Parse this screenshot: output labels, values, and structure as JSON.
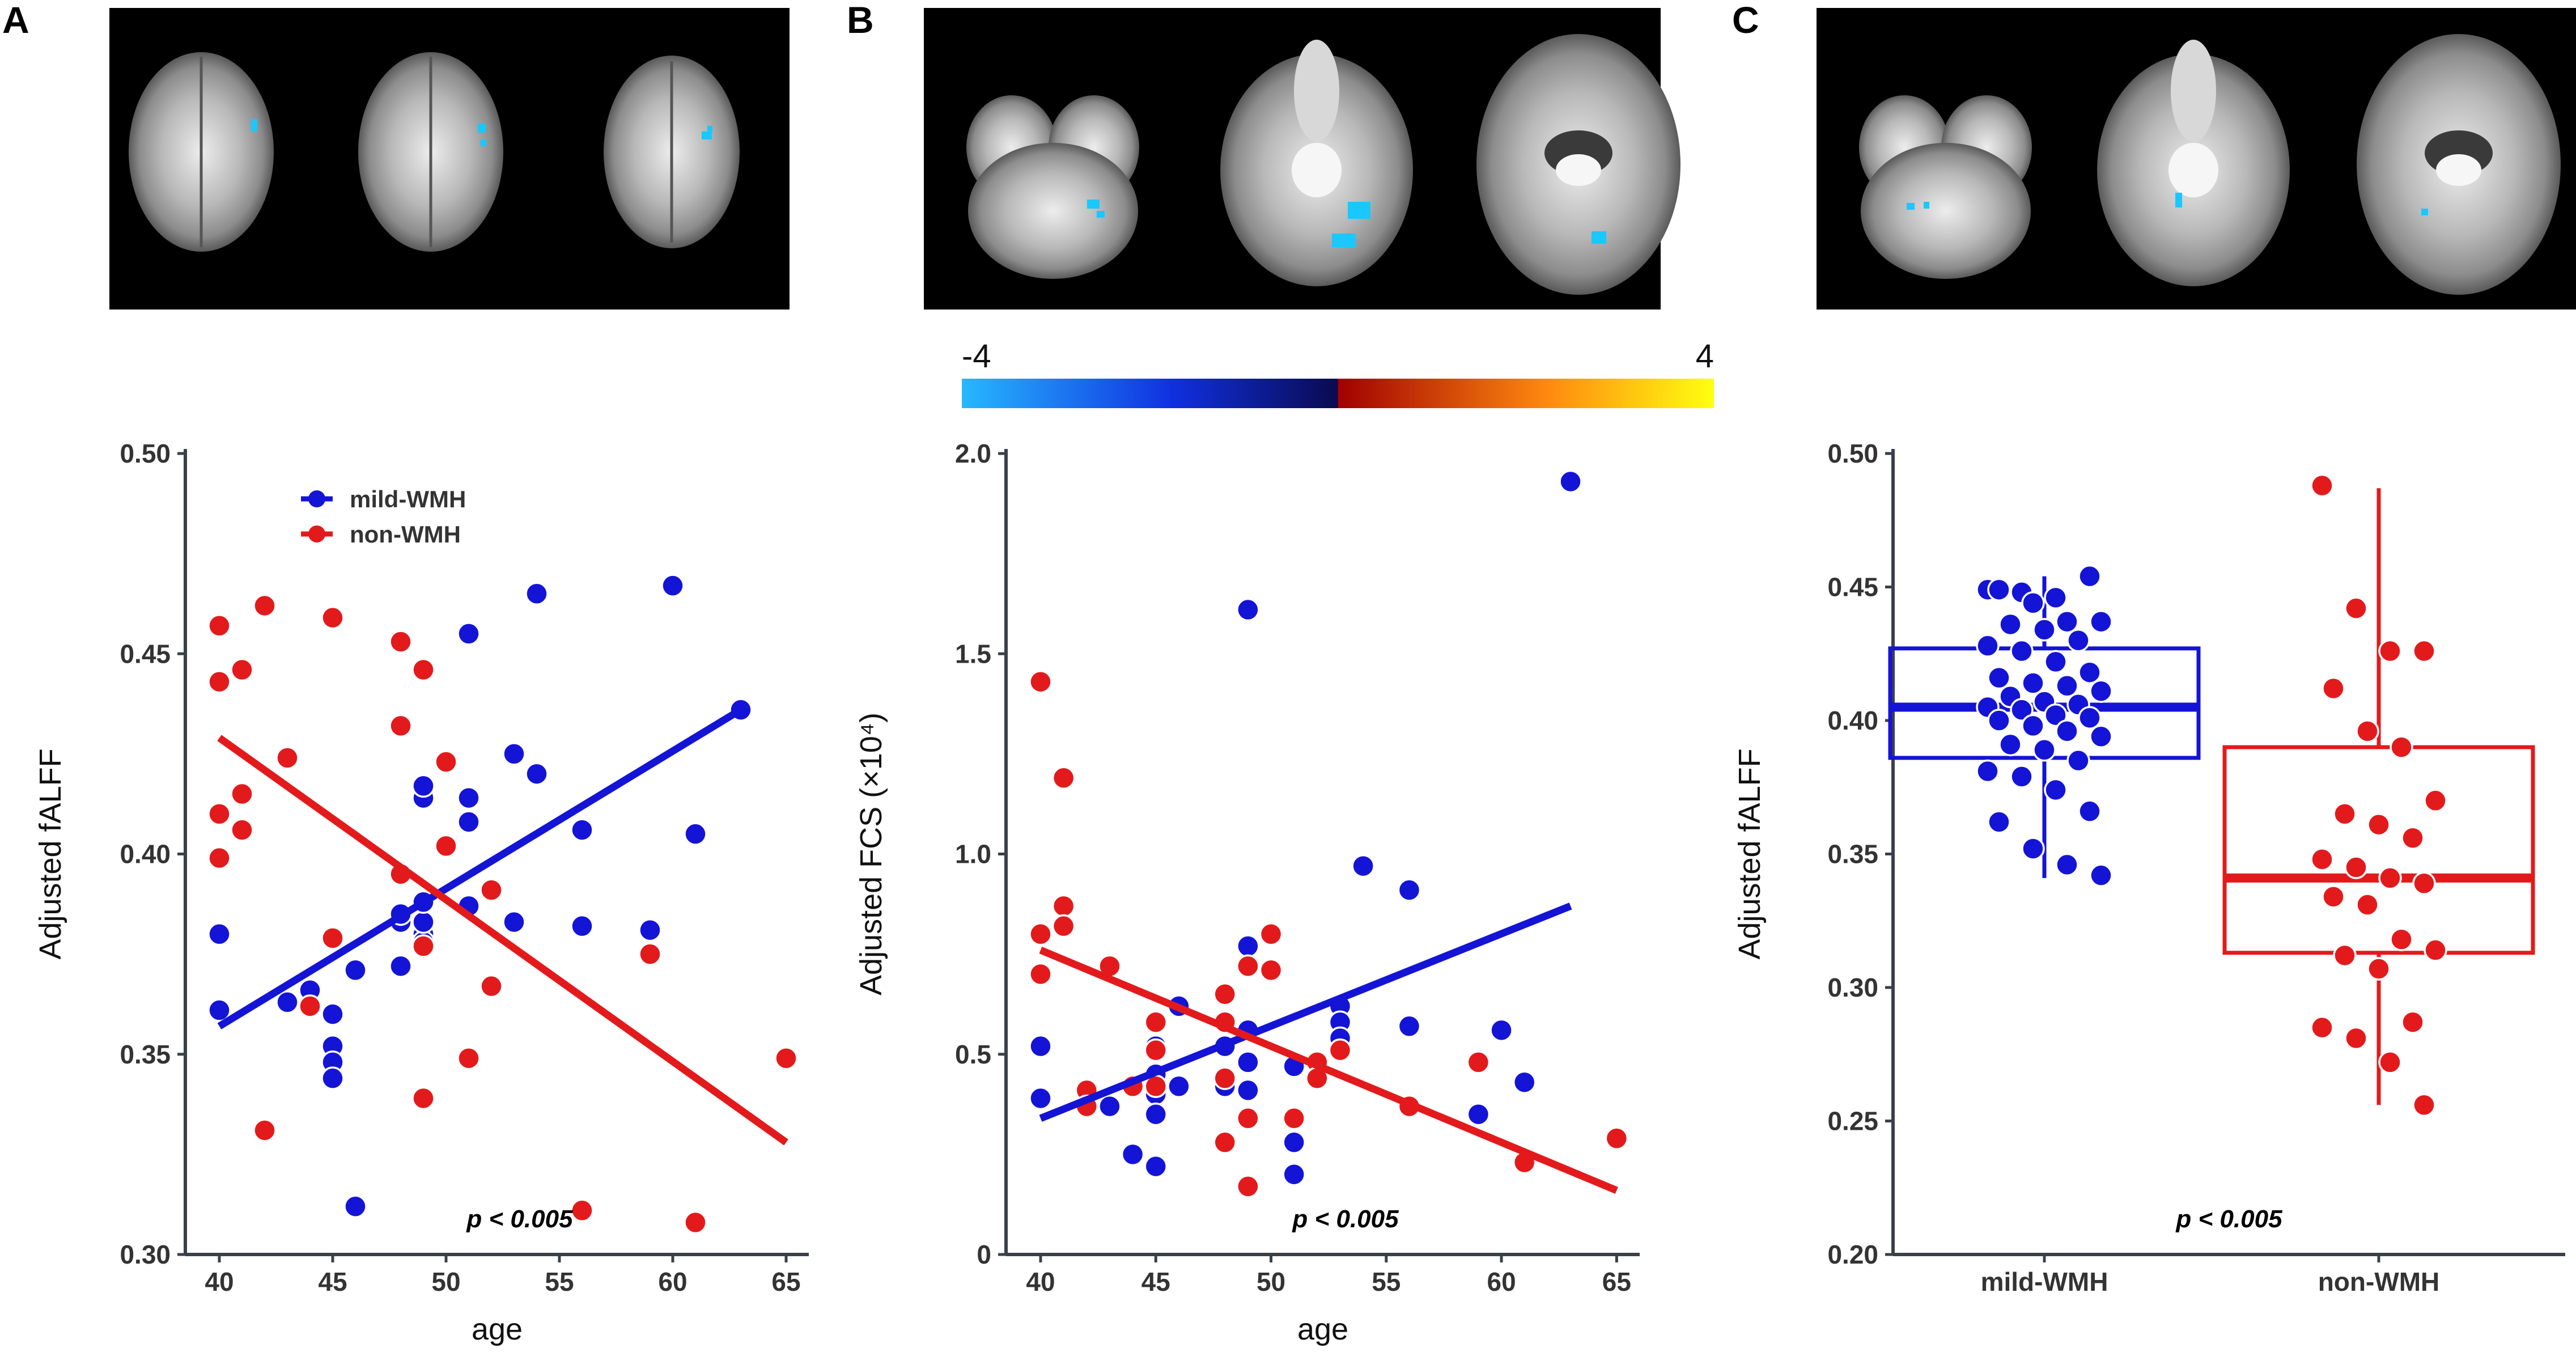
{
  "panels": {
    "a": "A",
    "b": "B",
    "c": "C"
  },
  "colors": {
    "mild": "#1414d6",
    "non": "#e31a1c",
    "highlight": "#18c8ff",
    "axis": "#3a4049"
  },
  "colorbar": {
    "min_label": "-4",
    "max_label": "4"
  },
  "chart_data": [
    {
      "type": "scatter",
      "panel": "A",
      "xlabel": "age",
      "ylabel": "Adjusted fALFF",
      "xlim": [
        38.5,
        66
      ],
      "ylim": [
        0.3,
        0.5
      ],
      "xticks": [
        40,
        45,
        50,
        55,
        60,
        65
      ],
      "yticks": [
        0.3,
        0.35,
        0.4,
        0.45,
        0.5
      ],
      "ytick_labels": [
        "0.30",
        "0.35",
        "0.40",
        "0.45",
        "0.50"
      ],
      "annotation": "p < 0.005",
      "legend": {
        "position": "top-left",
        "entries": [
          "mild-WMH",
          "non-WMH"
        ]
      },
      "series": [
        {
          "name": "mild-WMH",
          "fit": [
            [
              40,
              0.357
            ],
            [
              63,
              0.436
            ]
          ],
          "points": [
            [
              40,
              0.399
            ],
            [
              40,
              0.38
            ],
            [
              40,
              0.361
            ],
            [
              43,
              0.363
            ],
            [
              44,
              0.366
            ],
            [
              45,
              0.36
            ],
            [
              45,
              0.352
            ],
            [
              45,
              0.348
            ],
            [
              45,
              0.344
            ],
            [
              46,
              0.371
            ],
            [
              46,
              0.312
            ],
            [
              48,
              0.372
            ],
            [
              48,
              0.383
            ],
            [
              48,
              0.385
            ],
            [
              49,
              0.38
            ],
            [
              49,
              0.378
            ],
            [
              49,
              0.383
            ],
            [
              49,
              0.388
            ],
            [
              49,
              0.414
            ],
            [
              49,
              0.417
            ],
            [
              51,
              0.387
            ],
            [
              51,
              0.408
            ],
            [
              51,
              0.414
            ],
            [
              51,
              0.455
            ],
            [
              53,
              0.425
            ],
            [
              53,
              0.383
            ],
            [
              54,
              0.42
            ],
            [
              54,
              0.465
            ],
            [
              56,
              0.382
            ],
            [
              56,
              0.406
            ],
            [
              59,
              0.381
            ],
            [
              60,
              0.467
            ],
            [
              61,
              0.405
            ],
            [
              63,
              0.436
            ]
          ]
        },
        {
          "name": "non-WMH",
          "fit": [
            [
              40,
              0.429
            ],
            [
              65,
              0.328
            ]
          ],
          "points": [
            [
              40,
              0.457
            ],
            [
              40,
              0.443
            ],
            [
              40,
              0.41
            ],
            [
              40,
              0.399
            ],
            [
              41,
              0.446
            ],
            [
              41,
              0.415
            ],
            [
              41,
              0.406
            ],
            [
              42,
              0.462
            ],
            [
              42,
              0.331
            ],
            [
              43,
              0.424
            ],
            [
              44,
              0.362
            ],
            [
              45,
              0.459
            ],
            [
              45,
              0.379
            ],
            [
              48,
              0.453
            ],
            [
              48,
              0.432
            ],
            [
              48,
              0.395
            ],
            [
              49,
              0.446
            ],
            [
              49,
              0.377
            ],
            [
              49,
              0.339
            ],
            [
              50,
              0.423
            ],
            [
              50,
              0.402
            ],
            [
              51,
              0.349
            ],
            [
              52,
              0.391
            ],
            [
              52,
              0.367
            ],
            [
              56,
              0.311
            ],
            [
              59,
              0.375
            ],
            [
              61,
              0.308
            ],
            [
              65,
              0.349
            ]
          ]
        }
      ]
    },
    {
      "type": "scatter",
      "panel": "B",
      "xlabel": "age",
      "ylabel": "Adjusted FCS (×10⁴)",
      "xlim": [
        38.5,
        66
      ],
      "ylim": [
        0,
        2.0
      ],
      "xticks": [
        40,
        45,
        50,
        55,
        60,
        65
      ],
      "yticks": [
        0,
        0.5,
        1.0,
        1.5,
        2.0
      ],
      "ytick_labels": [
        "0",
        "0.5",
        "1.0",
        "1.5",
        "2.0"
      ],
      "annotation": "p < 0.005",
      "series": [
        {
          "name": "mild-WMH",
          "fit": [
            [
              40,
              0.34
            ],
            [
              63,
              0.87
            ]
          ],
          "points": [
            [
              40,
              0.52
            ],
            [
              40,
              0.39
            ],
            [
              45,
              0.58
            ],
            [
              45,
              0.52
            ],
            [
              45,
              0.45
            ],
            [
              45,
              0.4
            ],
            [
              45,
              0.35
            ],
            [
              45,
              0.22
            ],
            [
              46,
              0.62
            ],
            [
              46,
              0.42
            ],
            [
              48,
              0.52
            ],
            [
              48,
              0.42
            ],
            [
              49,
              1.61
            ],
            [
              49,
              0.77
            ],
            [
              49,
              0.56
            ],
            [
              49,
              0.48
            ],
            [
              49,
              0.41
            ],
            [
              51,
              0.47
            ],
            [
              51,
              0.28
            ],
            [
              51,
              0.2
            ],
            [
              53,
              0.62
            ],
            [
              53,
              0.58
            ],
            [
              53,
              0.54
            ],
            [
              54,
              0.97
            ],
            [
              56,
              0.91
            ],
            [
              56,
              0.57
            ],
            [
              59,
              0.35
            ],
            [
              60,
              0.56
            ],
            [
              61,
              0.43
            ],
            [
              63,
              1.93
            ],
            [
              44,
              0.25
            ],
            [
              43,
              0.37
            ]
          ]
        },
        {
          "name": "non-WMH",
          "fit": [
            [
              40,
              0.76
            ],
            [
              65,
              0.16
            ]
          ],
          "points": [
            [
              40,
              1.43
            ],
            [
              40,
              0.8
            ],
            [
              40,
              0.7
            ],
            [
              41,
              1.19
            ],
            [
              41,
              0.87
            ],
            [
              41,
              0.82
            ],
            [
              42,
              0.41
            ],
            [
              42,
              0.37
            ],
            [
              43,
              0.72
            ],
            [
              44,
              0.42
            ],
            [
              45,
              0.58
            ],
            [
              45,
              0.51
            ],
            [
              45,
              0.42
            ],
            [
              48,
              0.65
            ],
            [
              48,
              0.58
            ],
            [
              48,
              0.44
            ],
            [
              48,
              0.28
            ],
            [
              49,
              0.72
            ],
            [
              49,
              0.34
            ],
            [
              49,
              0.17
            ],
            [
              50,
              0.8
            ],
            [
              50,
              0.71
            ],
            [
              51,
              0.34
            ],
            [
              52,
              0.48
            ],
            [
              53,
              0.51
            ],
            [
              56,
              0.37
            ],
            [
              59,
              0.48
            ],
            [
              61,
              0.23
            ],
            [
              65,
              0.29
            ],
            [
              52,
              0.44
            ]
          ]
        }
      ]
    },
    {
      "type": "box",
      "panel": "C",
      "ylabel": "Adjusted fALFF",
      "categories": [
        "mild-WMH",
        "non-WMH"
      ],
      "ylim": [
        0.2,
        0.5
      ],
      "yticks": [
        0.2,
        0.25,
        0.3,
        0.35,
        0.4,
        0.45,
        0.5
      ],
      "ytick_labels": [
        "0.20",
        "0.25",
        "0.30",
        "0.35",
        "0.40",
        "0.45",
        "0.50"
      ],
      "annotation": "p < 0.005",
      "series": [
        {
          "name": "mild-WMH",
          "min": 0.341,
          "q1": 0.386,
          "median": 0.405,
          "q3": 0.427,
          "max": 0.454,
          "points": [
            0.449,
            0.448,
            0.446,
            0.454,
            0.449,
            0.444,
            0.437,
            0.437,
            0.436,
            0.434,
            0.43,
            0.428,
            0.426,
            0.422,
            0.418,
            0.416,
            0.414,
            0.413,
            0.411,
            0.409,
            0.407,
            0.406,
            0.405,
            0.404,
            0.402,
            0.401,
            0.4,
            0.398,
            0.396,
            0.394,
            0.391,
            0.389,
            0.385,
            0.381,
            0.379,
            0.374,
            0.366,
            0.362,
            0.352,
            0.346,
            0.342
          ]
        },
        {
          "name": "non-WMH",
          "min": 0.256,
          "q1": 0.313,
          "median": 0.341,
          "q3": 0.39,
          "max": 0.487,
          "points": [
            0.488,
            0.442,
            0.426,
            0.426,
            0.412,
            0.396,
            0.39,
            0.37,
            0.365,
            0.361,
            0.356,
            0.348,
            0.345,
            0.341,
            0.339,
            0.334,
            0.331,
            0.318,
            0.314,
            0.312,
            0.307,
            0.287,
            0.285,
            0.281,
            0.272,
            0.256
          ]
        }
      ]
    }
  ]
}
